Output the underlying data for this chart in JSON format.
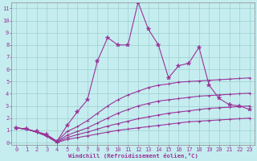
{
  "xlabel": "Windchill (Refroidissement éolien,°C)",
  "background_color": "#c5edef",
  "grid_color": "#9dcece",
  "line_color": "#993399",
  "xlim": [
    -0.5,
    23.5
  ],
  "ylim": [
    -0.2,
    11.5
  ],
  "xticks": [
    0,
    1,
    2,
    3,
    4,
    5,
    6,
    7,
    8,
    9,
    10,
    11,
    12,
    13,
    14,
    15,
    16,
    17,
    18,
    19,
    20,
    21,
    22,
    23
  ],
  "yticks": [
    0,
    1,
    2,
    3,
    4,
    5,
    6,
    7,
    8,
    9,
    10,
    11
  ],
  "line1_x": [
    0,
    1,
    2,
    3,
    4,
    5,
    6,
    7,
    8,
    9,
    10,
    11,
    12,
    13,
    14,
    15,
    16,
    17,
    18,
    19,
    20,
    21,
    22,
    23
  ],
  "line1_y": [
    1.2,
    1.1,
    0.9,
    0.65,
    0.1,
    1.4,
    2.5,
    3.5,
    6.7,
    8.6,
    8.0,
    8.0,
    11.5,
    9.3,
    8.0,
    5.3,
    6.3,
    6.5,
    7.8,
    4.7,
    3.6,
    3.1,
    3.0,
    2.7
  ],
  "line2_x": [
    0,
    1,
    2,
    3,
    4,
    5,
    6,
    7,
    8,
    9,
    10,
    11,
    12,
    13,
    14,
    15,
    16,
    17,
    18,
    19,
    20,
    21,
    22,
    23
  ],
  "line2_y": [
    1.2,
    1.1,
    0.85,
    0.6,
    0.1,
    0.9,
    1.3,
    1.8,
    2.4,
    3.0,
    3.5,
    3.9,
    4.2,
    4.5,
    4.7,
    4.8,
    4.95,
    5.0,
    5.05,
    5.1,
    5.15,
    5.2,
    5.25,
    5.3
  ],
  "line3_x": [
    0,
    1,
    2,
    3,
    4,
    5,
    6,
    7,
    8,
    9,
    10,
    11,
    12,
    13,
    14,
    15,
    16,
    17,
    18,
    19,
    20,
    21,
    22,
    23
  ],
  "line3_y": [
    1.2,
    1.1,
    0.85,
    0.6,
    0.05,
    0.6,
    0.9,
    1.2,
    1.6,
    2.0,
    2.4,
    2.7,
    3.0,
    3.2,
    3.4,
    3.5,
    3.6,
    3.7,
    3.8,
    3.85,
    3.9,
    3.95,
    4.0,
    4.05
  ],
  "line4_x": [
    0,
    1,
    2,
    3,
    4,
    5,
    6,
    7,
    8,
    9,
    10,
    11,
    12,
    13,
    14,
    15,
    16,
    17,
    18,
    19,
    20,
    21,
    22,
    23
  ],
  "line4_y": [
    1.2,
    1.1,
    0.85,
    0.55,
    0.02,
    0.4,
    0.65,
    0.85,
    1.1,
    1.35,
    1.55,
    1.75,
    1.95,
    2.1,
    2.25,
    2.4,
    2.5,
    2.6,
    2.7,
    2.8,
    2.85,
    2.9,
    2.95,
    3.0
  ],
  "line5_x": [
    0,
    1,
    2,
    3,
    4,
    5,
    6,
    7,
    8,
    9,
    10,
    11,
    12,
    13,
    14,
    15,
    16,
    17,
    18,
    19,
    20,
    21,
    22,
    23
  ],
  "line5_y": [
    1.2,
    1.1,
    0.85,
    0.5,
    0.0,
    0.25,
    0.4,
    0.55,
    0.7,
    0.85,
    1.0,
    1.1,
    1.2,
    1.3,
    1.4,
    1.5,
    1.6,
    1.7,
    1.75,
    1.8,
    1.85,
    1.9,
    1.95,
    2.0
  ]
}
